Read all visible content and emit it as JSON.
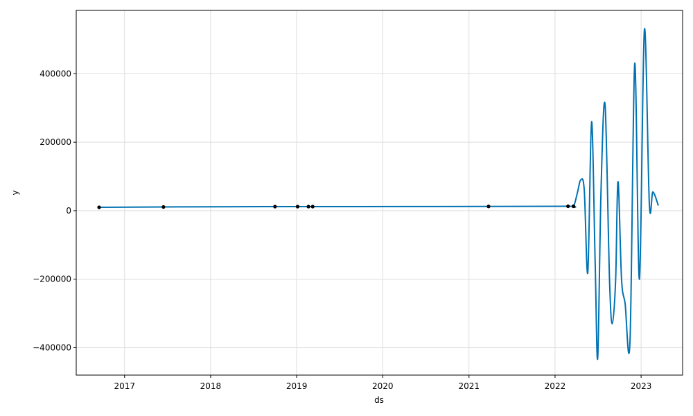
{
  "chart_data": {
    "type": "line",
    "title": "",
    "xlabel": "ds",
    "ylabel": "y",
    "x_range": [
      "2016-06-10",
      "2023-06-26"
    ],
    "ylim": [
      -480000,
      585000
    ],
    "grid": true,
    "x_ticks": [
      {
        "date": "2017-01-01",
        "label": "2017"
      },
      {
        "date": "2018-01-01",
        "label": "2018"
      },
      {
        "date": "2019-01-01",
        "label": "2019"
      },
      {
        "date": "2020-01-01",
        "label": "2020"
      },
      {
        "date": "2021-01-01",
        "label": "2021"
      },
      {
        "date": "2022-01-01",
        "label": "2022"
      },
      {
        "date": "2023-01-01",
        "label": "2023"
      }
    ],
    "y_ticks": [
      {
        "value": 400000,
        "label": "400000"
      },
      {
        "value": 200000,
        "label": "200000"
      },
      {
        "value": 0,
        "label": "0"
      },
      {
        "value": -200000,
        "label": "−200000"
      },
      {
        "value": -400000,
        "label": "−400000"
      }
    ],
    "colors": {
      "forecast": "#0072B2",
      "observed": "#000000",
      "grid": "#dddddd",
      "axes": "#000000"
    },
    "series": [
      {
        "kind": "observed-points",
        "points": [
          {
            "x": "2016-09-15",
            "y": 10000
          },
          {
            "x": "2017-06-15",
            "y": 11000
          },
          {
            "x": "2018-10-01",
            "y": 12000
          },
          {
            "x": "2019-01-05",
            "y": 12000
          },
          {
            "x": "2019-02-20",
            "y": 12000
          },
          {
            "x": "2019-03-10",
            "y": 12000
          },
          {
            "x": "2021-03-25",
            "y": 12500
          },
          {
            "x": "2022-02-25",
            "y": 13000
          },
          {
            "x": "2022-03-20",
            "y": 13000
          }
        ]
      },
      {
        "kind": "forecast-line",
        "points": [
          {
            "x": "2016-09-15",
            "y": 10000
          },
          {
            "x": "2017-06-15",
            "y": 11000
          },
          {
            "x": "2018-10-01",
            "y": 12000
          },
          {
            "x": "2019-03-10",
            "y": 12000
          },
          {
            "x": "2021-03-25",
            "y": 12500
          },
          {
            "x": "2022-02-25",
            "y": 13000
          },
          {
            "x": "2022-03-20",
            "y": 13000
          },
          {
            "x": "2022-04-05",
            "y": 50000
          },
          {
            "x": "2022-04-20",
            "y": 90000
          },
          {
            "x": "2022-05-05",
            "y": 60000
          },
          {
            "x": "2022-05-20",
            "y": -180000
          },
          {
            "x": "2022-06-05",
            "y": 260000
          },
          {
            "x": "2022-06-20",
            "y": -150000
          },
          {
            "x": "2022-07-01",
            "y": -430000
          },
          {
            "x": "2022-07-15",
            "y": 60000
          },
          {
            "x": "2022-08-01",
            "y": 310000
          },
          {
            "x": "2022-08-20",
            "y": -200000
          },
          {
            "x": "2022-09-01",
            "y": -330000
          },
          {
            "x": "2022-09-15",
            "y": -200000
          },
          {
            "x": "2022-09-25",
            "y": 85000
          },
          {
            "x": "2022-10-10",
            "y": -200000
          },
          {
            "x": "2022-10-25",
            "y": -270000
          },
          {
            "x": "2022-11-15",
            "y": -380000
          },
          {
            "x": "2022-12-05",
            "y": 430000
          },
          {
            "x": "2022-12-25",
            "y": -200000
          },
          {
            "x": "2023-01-15",
            "y": 530000
          },
          {
            "x": "2023-02-05",
            "y": 20000
          },
          {
            "x": "2023-02-20",
            "y": 55000
          },
          {
            "x": "2023-03-15",
            "y": 15000
          }
        ]
      }
    ]
  }
}
